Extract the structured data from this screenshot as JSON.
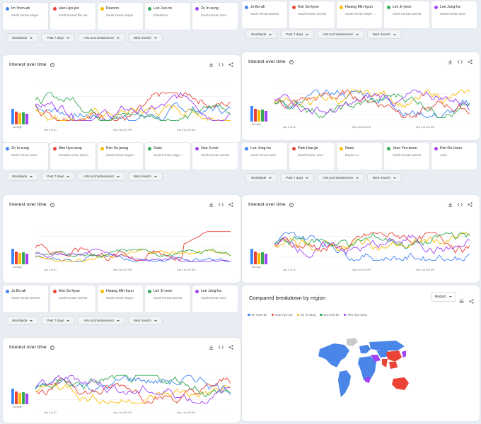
{
  "colors": {
    "blue": "#4285f4",
    "red": "#ea4335",
    "yellow": "#fbbc04",
    "green": "#34a853",
    "purple": "#a142f4"
  },
  "filters": [
    "Worldwide",
    "Past 7 days",
    "Arts & Entertainment",
    "Web Search"
  ],
  "panel_title": "Interest over time",
  "avg_label": "Average",
  "groups": [
    {
      "terms": [
        {
          "name": "Im Yoon-ah",
          "sub": "South Korean singer ...",
          "color": "#4285f4"
        },
        {
          "name": "Han Hyo-joo",
          "sub": "South Korean film act...",
          "color": "#ea4335"
        },
        {
          "name": "Ravoon",
          "sub": "South Korean singer",
          "color": "#fbbc04"
        },
        {
          "name": "Lee Jun-ho",
          "sub": "Entertainer",
          "color": "#34a853"
        },
        {
          "name": "Zo In-sung",
          "sub": "South Korean actor",
          "color": "#a142f4"
        }
      ],
      "xlabels": [
        "Sep 2 at 10...",
        "Sep 4 at 1:00 PM",
        "Sep 6 at 4:00 AM"
      ]
    },
    {
      "terms": [
        {
          "name": "Jo Bo-ah",
          "sub": "South Korean actress",
          "color": "#4285f4"
        },
        {
          "name": "Kim So-hyun",
          "sub": "South Korean actress",
          "color": "#ea4335"
        },
        {
          "name": "Hwang Min-hyun",
          "sub": "South Korean singer ...",
          "color": "#fbbc04"
        },
        {
          "name": "Lim Ji-yeon",
          "sub": "South Korean actress",
          "color": "#34a853"
        },
        {
          "name": "Lee Jung-ha",
          "sub": "South Korean actor",
          "color": "#a142f4"
        }
      ],
      "xlabels": [
        "Sep 2 at 10...",
        "Sep 4 at 1:00 PM",
        "Sep 6 at 4:00 AM"
      ]
    },
    {
      "terms": [
        {
          "name": "Zo In-sung",
          "sub": "South Korean actor",
          "color": "#4285f4"
        },
        {
          "name": "Ahn Hyo-seop",
          "sub": "Canadian actor and si...",
          "color": "#ea4335"
        },
        {
          "name": "Kim Se-jeong",
          "sub": "South Korean singer ...",
          "color": "#fbbc04"
        },
        {
          "name": "Suho",
          "sub": "South Korean singer ...",
          "color": "#34a853"
        },
        {
          "name": "Han Ji-min",
          "sub": "South Korean actress",
          "color": "#a142f4"
        }
      ],
      "xlabels": [
        "Sep 2 at 10...",
        "Sep 4 at 1:00 PM",
        "Sep 6 at 4:00 AM"
      ]
    },
    {
      "terms": [
        {
          "name": "Lee Jung-ha",
          "sub": "South Korean actor",
          "color": "#4285f4"
        },
        {
          "name": "Park Hae-jin",
          "sub": "South Korean actor",
          "color": "#ea4335"
        },
        {
          "name": "Nano",
          "sub": "Empire v.v.",
          "color": "#fbbc04"
        },
        {
          "name": "Jeon Yeo-been",
          "sub": "South Korean actress",
          "color": "#34a853"
        },
        {
          "name": "Kim Do-Hoon",
          "sub": "Actor",
          "color": "#a142f4"
        }
      ],
      "xlabels": [
        "Sep 2 at 10...",
        "Sep 4 at 1:00 PM",
        "Sep 6 at 4:00 AM"
      ]
    },
    {
      "terms": [
        {
          "name": "Jo Bo-ah",
          "sub": "South Korean actress",
          "color": "#4285f4"
        },
        {
          "name": "Kim So-hyun",
          "sub": "South Korean actress",
          "color": "#ea4335"
        },
        {
          "name": "Hwang Min-hyun",
          "sub": "South Korean singer ...",
          "color": "#fbbc04"
        },
        {
          "name": "Lim Ji-yeon",
          "sub": "South Korean actress",
          "color": "#34a853"
        },
        {
          "name": "Lee Jung-ha",
          "sub": "South Korean actor",
          "color": "#a142f4"
        }
      ],
      "xlabels": [
        "Sep 2 at 10...",
        "Sep 4 at 1:00 PM",
        "Sep 6 at 4:00 AM"
      ]
    }
  ],
  "region": {
    "title": "Compared breakdown by region",
    "select": "Region",
    "legend": [
      {
        "name": "Im Yoon-ah",
        "color": "#4285f4"
      },
      {
        "name": "Han Hyo-joo",
        "color": "#ea4335"
      },
      {
        "name": "Zo In-sung",
        "color": "#fbbc04"
      },
      {
        "name": "Lee Jun-ho",
        "color": "#34a853"
      },
      {
        "name": "Ahn Hyo-seop",
        "color": "#a142f4"
      }
    ]
  }
}
